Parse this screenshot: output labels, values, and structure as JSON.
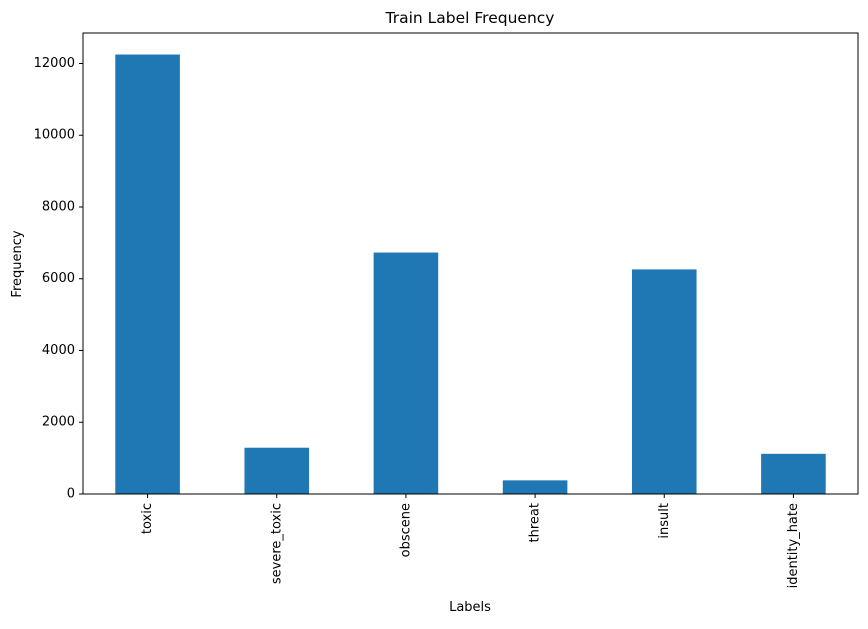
{
  "chart_data": {
    "type": "bar",
    "title": "Train Label Frequency",
    "xlabel": "Labels",
    "ylabel": "Frequency",
    "categories": [
      "toxic",
      "severe_toxic",
      "obscene",
      "threat",
      "insult",
      "identity_hate"
    ],
    "values": [
      12250,
      1290,
      6730,
      380,
      6260,
      1120
    ],
    "ylim": [
      0,
      12850
    ],
    "yticks": [
      0,
      2000,
      4000,
      6000,
      8000,
      10000,
      12000
    ],
    "grid": false,
    "legend": "none",
    "bar_color": "#1f77b4"
  }
}
